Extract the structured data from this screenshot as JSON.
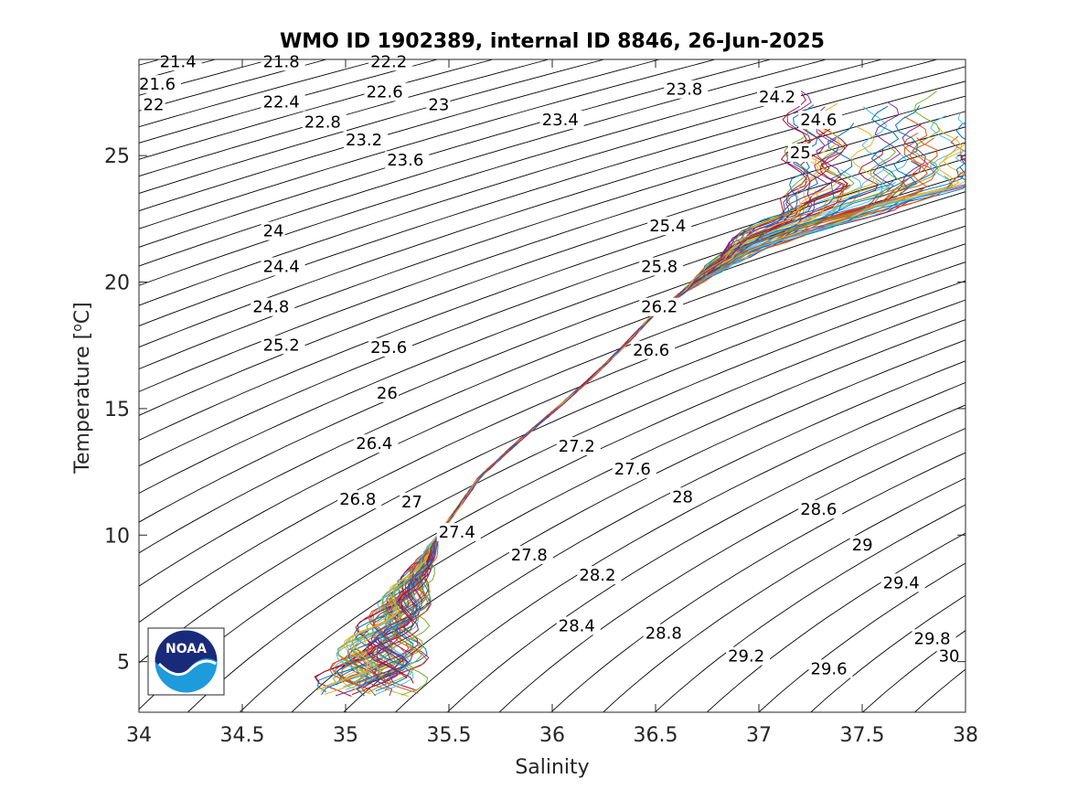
{
  "chart_data": {
    "type": "line",
    "title": "WMO ID 1902389, internal ID 8846, 26-Jun-2025",
    "xlabel": "Salinity",
    "ylabel_main": "Temperature [",
    "ylabel_super": "o",
    "ylabel_tail": "C]",
    "xlim": [
      34,
      38
    ],
    "ylim": [
      3,
      28.8
    ],
    "xticks": [
      "34",
      "34.5",
      "35",
      "35.5",
      "36",
      "36.5",
      "37",
      "37.5",
      "38"
    ],
    "yticks": [
      "5",
      "10",
      "15",
      "20",
      "25"
    ],
    "grid": false,
    "legend": "none",
    "density_contours": {
      "interval": 0.2,
      "from": 21.4,
      "to": 30.2,
      "labels": [
        {
          "text": "21.4",
          "s": 34.1,
          "t": 28.5
        },
        {
          "text": "21.6",
          "s": 34.0,
          "t": 27.6
        },
        {
          "text": "22",
          "s": 34.02,
          "t": 26.8
        },
        {
          "text": "21.8",
          "s": 34.6,
          "t": 28.5
        },
        {
          "text": "22.2",
          "s": 35.12,
          "t": 28.5
        },
        {
          "text": "22.4",
          "s": 34.6,
          "t": 26.9
        },
        {
          "text": "22.6",
          "s": 35.1,
          "t": 27.3
        },
        {
          "text": "22.8",
          "s": 34.8,
          "t": 26.1
        },
        {
          "text": "23",
          "s": 35.4,
          "t": 26.8
        },
        {
          "text": "23.2",
          "s": 35.0,
          "t": 25.4
        },
        {
          "text": "23.4",
          "s": 35.95,
          "t": 26.2
        },
        {
          "text": "23.6",
          "s": 35.2,
          "t": 24.6
        },
        {
          "text": "23.8",
          "s": 36.55,
          "t": 27.4
        },
        {
          "text": "24.2",
          "s": 37.0,
          "t": 27.1
        },
        {
          "text": "24.6",
          "s": 37.2,
          "t": 26.2
        },
        {
          "text": "25",
          "s": 37.15,
          "t": 24.9
        },
        {
          "text": "24",
          "s": 34.6,
          "t": 21.8
        },
        {
          "text": "24.4",
          "s": 34.6,
          "t": 20.4
        },
        {
          "text": "24.8",
          "s": 34.55,
          "t": 18.8
        },
        {
          "text": "25.2",
          "s": 34.6,
          "t": 17.3
        },
        {
          "text": "25.6",
          "s": 35.12,
          "t": 17.2
        },
        {
          "text": "25.4",
          "s": 36.47,
          "t": 22.0
        },
        {
          "text": "25.8",
          "s": 36.43,
          "t": 20.4
        },
        {
          "text": "26.2",
          "s": 36.43,
          "t": 18.8
        },
        {
          "text": "26.6",
          "s": 36.39,
          "t": 17.1
        },
        {
          "text": "26",
          "s": 35.15,
          "t": 15.4
        },
        {
          "text": "26.4",
          "s": 35.05,
          "t": 13.4
        },
        {
          "text": "26.8",
          "s": 34.97,
          "t": 11.2
        },
        {
          "text": "27",
          "s": 35.27,
          "t": 11.1
        },
        {
          "text": "27.2",
          "s": 36.03,
          "t": 13.3
        },
        {
          "text": "27.6",
          "s": 36.3,
          "t": 12.4
        },
        {
          "text": "28",
          "s": 36.58,
          "t": 11.3
        },
        {
          "text": "27.4",
          "s": 35.45,
          "t": 9.9
        },
        {
          "text": "27.8",
          "s": 35.8,
          "t": 9.0
        },
        {
          "text": "28.2",
          "s": 36.13,
          "t": 8.2
        },
        {
          "text": "28.6",
          "s": 37.2,
          "t": 10.8
        },
        {
          "text": "29",
          "s": 37.45,
          "t": 9.4
        },
        {
          "text": "29.4",
          "s": 37.6,
          "t": 7.9
        },
        {
          "text": "28.4",
          "s": 36.03,
          "t": 6.2
        },
        {
          "text": "28.8",
          "s": 36.45,
          "t": 5.9
        },
        {
          "text": "29.2",
          "s": 36.85,
          "t": 5.0
        },
        {
          "text": "29.6",
          "s": 37.25,
          "t": 4.5
        },
        {
          "text": "29.8",
          "s": 37.75,
          "t": 5.7
        },
        {
          "text": "30",
          "s": 37.87,
          "t": 5.0
        }
      ]
    },
    "profiles_count": 60,
    "profile_envelope": {
      "salinity": [
        35.05,
        35.15,
        35.3,
        35.45,
        35.65,
        35.85,
        36.05,
        36.2,
        36.35,
        36.5,
        36.7,
        36.9,
        37.1,
        37.35,
        37.6
      ],
      "temperature": [
        4.2,
        6.0,
        8.0,
        10.0,
        12.3,
        13.8,
        15.2,
        16.3,
        17.5,
        18.8,
        20.0,
        21.2,
        22.0,
        22.8,
        23.8
      ]
    },
    "series_colors": [
      "#0072BD",
      "#D95319",
      "#EDB120",
      "#7E2F8E",
      "#77AC30",
      "#4DBEEE",
      "#A2142F"
    ]
  },
  "logo": {
    "text": "NOAA",
    "name": "noaa-logo"
  }
}
